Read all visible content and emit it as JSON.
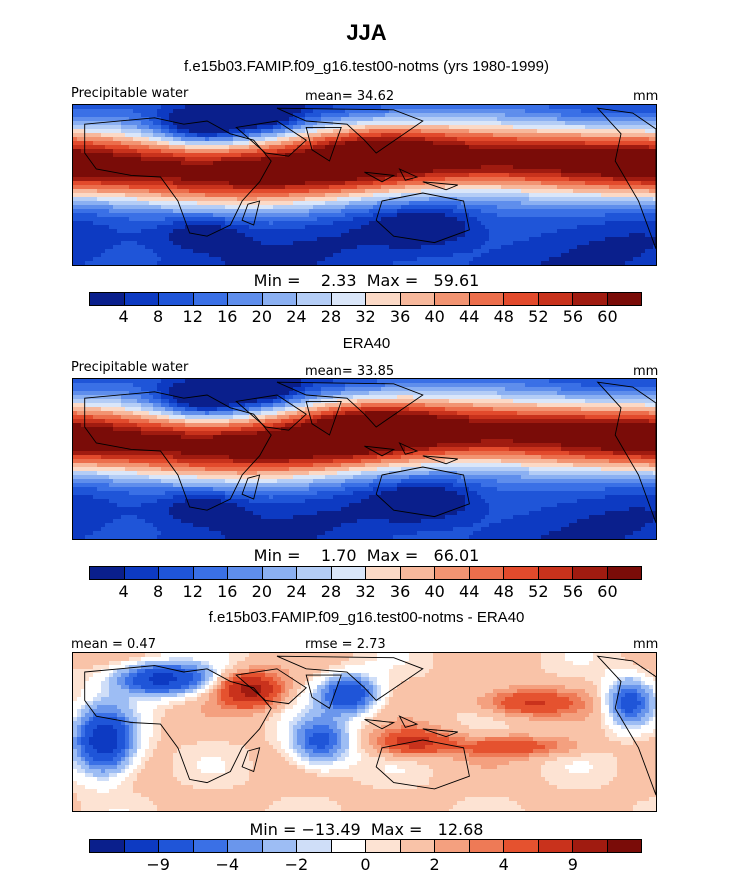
{
  "title": "JJA",
  "palette_abs": [
    "#0a1f8c",
    "#0d3ac2",
    "#1f55d8",
    "#3a70e6",
    "#5f8eec",
    "#8bb0f2",
    "#b4cdf6",
    "#dae6f9",
    "#fbd9c6",
    "#f7b89c",
    "#f29472",
    "#ec6e4c",
    "#e24a2c",
    "#c8321c",
    "#a01b10",
    "#7a0c08"
  ],
  "palette_diff": [
    "#0a1f8c",
    "#0d3ac2",
    "#1f55d8",
    "#3a70e6",
    "#6a96ec",
    "#9dbdf4",
    "#cfdef8",
    "#ffffff",
    "#fde3d3",
    "#f9c3a8",
    "#f4a07f",
    "#ee7a56",
    "#e5522f",
    "#c9321c",
    "#a01b10",
    "#7a0c08"
  ],
  "panels": [
    {
      "subtitle": "f.e15b03.FAMIP.f09_g16.test00-notms (yrs 1980-1999)",
      "left_label": "Precipitable water",
      "center_label": "mean=  34.62",
      "right_label": "mm",
      "stats": "Min =    2.33  Max =   59.61",
      "tick_labels": [
        "4",
        "8",
        "12",
        "16",
        "20",
        "24",
        "28",
        "32",
        "36",
        "40",
        "44",
        "48",
        "52",
        "56",
        "60"
      ]
    },
    {
      "subtitle": "ERA40",
      "left_label": "Precipitable water",
      "center_label": "mean=  33.85",
      "right_label": "mm",
      "stats": "Min =    1.70  Max =   66.01",
      "tick_labels": [
        "4",
        "8",
        "12",
        "16",
        "20",
        "24",
        "28",
        "32",
        "36",
        "40",
        "44",
        "48",
        "52",
        "56",
        "60"
      ]
    },
    {
      "subtitle": "f.e15b03.FAMIP.f09_g16.test00-notms - ERA40",
      "left_label": "mean =    0.47",
      "center_label": "rmse =    2.73",
      "right_label": "mm",
      "stats": "Min = −13.49  Max =   12.68",
      "tick_labels": [
        "−9",
        "−4",
        "−2",
        "0",
        "2",
        "4",
        "9"
      ]
    }
  ],
  "chart_data": [
    {
      "type": "heatmap",
      "title": "JJA",
      "subtitle": "f.e15b03.FAMIP.f09_g16.test00-notms (yrs 1980-1999)",
      "variable": "Precipitable water",
      "units": "mm",
      "mean": 34.62,
      "min": 2.33,
      "max": 59.61,
      "contour_levels": [
        4,
        8,
        12,
        16,
        20,
        24,
        28,
        32,
        36,
        40,
        44,
        48,
        52,
        56,
        60
      ]
    },
    {
      "type": "heatmap",
      "subtitle": "ERA40",
      "variable": "Precipitable water",
      "units": "mm",
      "mean": 33.85,
      "min": 1.7,
      "max": 66.01,
      "contour_levels": [
        4,
        8,
        12,
        16,
        20,
        24,
        28,
        32,
        36,
        40,
        44,
        48,
        52,
        56,
        60
      ]
    },
    {
      "type": "heatmap",
      "subtitle": "f.e15b03.FAMIP.f09_g16.test00-notms - ERA40",
      "units": "mm",
      "mean": 0.47,
      "rmse": 2.73,
      "min": -13.49,
      "max": 12.68,
      "tick_labels": [
        -9,
        -4,
        -2,
        0,
        2,
        4,
        9
      ]
    }
  ]
}
